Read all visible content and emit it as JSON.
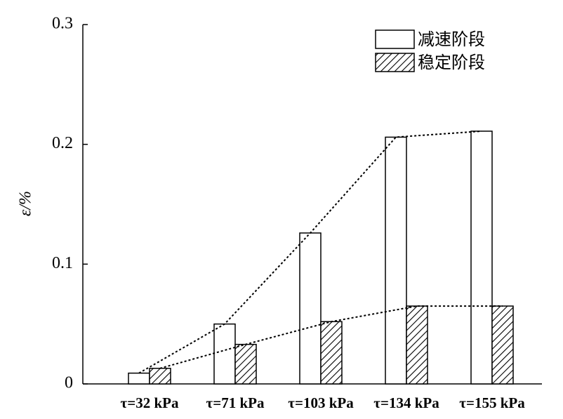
{
  "chart_data": {
    "type": "bar",
    "y_label": "ε/%",
    "categories": [
      "τ=32 kPa",
      "τ=71 kPa",
      "τ=103 kPa",
      "τ=134 kPa",
      "τ=155 kPa"
    ],
    "series": [
      {
        "name": "减速阶段",
        "color": "#000000",
        "hatch": false,
        "values": [
          0.009,
          0.05,
          0.126,
          0.206,
          0.211
        ]
      },
      {
        "name": "稳定阶段",
        "color": "#000000",
        "hatch": true,
        "values": [
          0.013,
          0.033,
          0.052,
          0.065,
          0.065
        ]
      }
    ],
    "ylim": [
      0,
      0.3
    ],
    "yticks": [
      0,
      0.1,
      0.2,
      0.3
    ],
    "trend_lines": true,
    "legend": "upper right"
  }
}
